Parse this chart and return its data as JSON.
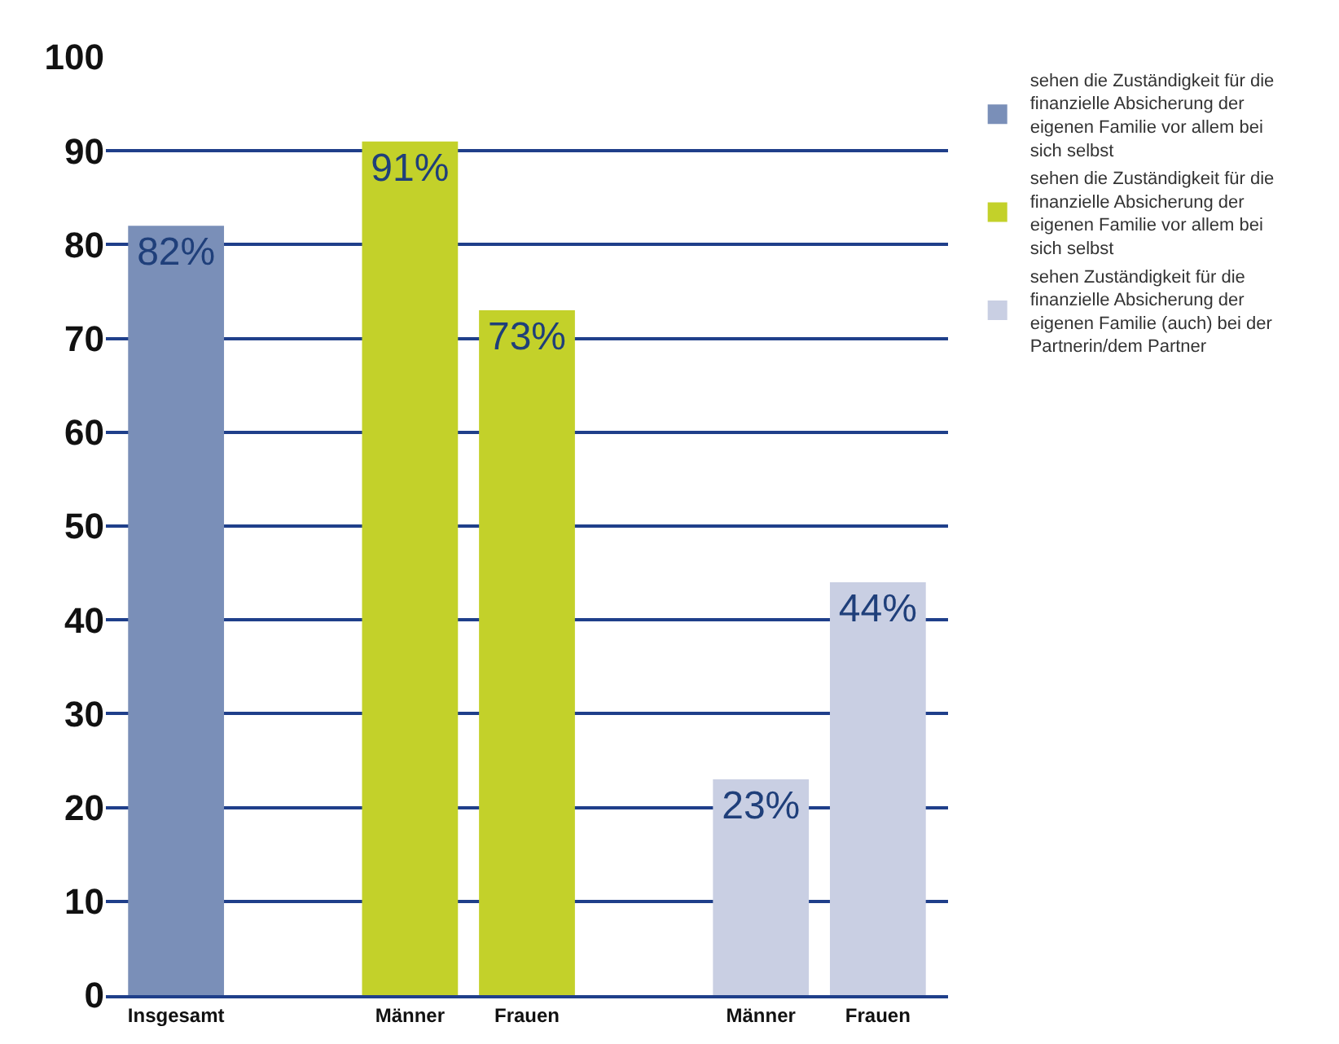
{
  "chart_data": {
    "type": "bar",
    "categories": [
      "Insgesamt",
      null,
      "Männer",
      "Frauen",
      null,
      "Männer",
      "Frauen"
    ],
    "series": [
      {
        "name": "sehen die Zuständigkeit für die finanzielle Absicherung der eigenen Familie vor allem bei sich selbst",
        "color": "#7a8fb8",
        "values": [
          82,
          null,
          null,
          null,
          null,
          null,
          null
        ],
        "value_labels": [
          "82%",
          null,
          null,
          null,
          null,
          null,
          null
        ]
      },
      {
        "name": "sehen die Zuständigkeit für die finanzielle Absicherung der eigenen Familie vor allem bei sich selbst",
        "color": "#c3d12a",
        "values": [
          null,
          null,
          91,
          73,
          null,
          null,
          null
        ],
        "value_labels": [
          null,
          null,
          "91%",
          "73%",
          null,
          null,
          null
        ]
      },
      {
        "name": "sehen Zuständigkeit für die finanzielle Absicherung der eigenen Familie (auch) bei der Partnerin/dem Partner",
        "color": "#c9cfe3",
        "values": [
          null,
          null,
          null,
          null,
          null,
          23,
          44
        ],
        "value_labels": [
          null,
          null,
          null,
          null,
          null,
          "23%",
          "44%"
        ]
      }
    ],
    "ylim": [
      0,
      100
    ],
    "yticks": [
      0,
      10,
      20,
      30,
      40,
      50,
      60,
      70,
      80,
      90,
      100
    ],
    "grid": "y",
    "legend": "top right"
  }
}
